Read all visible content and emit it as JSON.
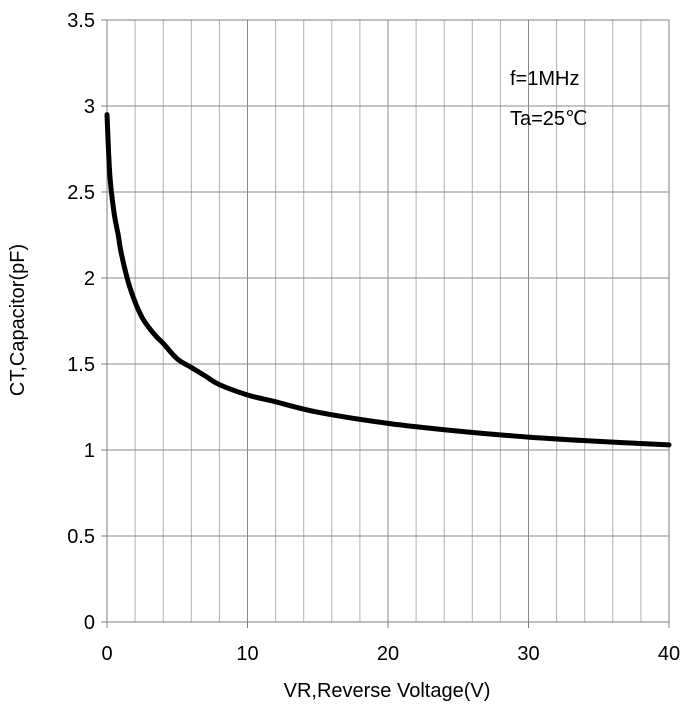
{
  "chart_data": {
    "type": "line",
    "title": "",
    "xlabel": "VR,Reverse Voltage(V)",
    "ylabel": "CT,Capacitor(pF)",
    "xlim": [
      0,
      40
    ],
    "ylim": [
      0,
      3.5
    ],
    "x_ticks": [
      "0",
      "10",
      "20",
      "30",
      "40"
    ],
    "y_ticks": [
      "0",
      "0.5",
      "1",
      "1.5",
      "2",
      "2.5",
      "3",
      "3.5"
    ],
    "grid": true,
    "annotations": [
      "f=1MHz",
      "Ta=25℃"
    ],
    "series": [
      {
        "x": [
          0,
          0.2,
          0.5,
          0.8,
          1.0,
          1.5,
          2.0,
          2.5,
          3.0,
          3.5,
          4.0,
          5.0,
          6.0,
          7.0,
          8.0,
          10.0,
          12.0,
          15.0,
          20.0,
          25.0,
          30.0,
          35.0,
          40.0
        ],
        "y": [
          2.95,
          2.6,
          2.38,
          2.25,
          2.15,
          1.98,
          1.86,
          1.77,
          1.71,
          1.66,
          1.62,
          1.53,
          1.48,
          1.43,
          1.38,
          1.32,
          1.28,
          1.22,
          1.155,
          1.11,
          1.075,
          1.05,
          1.03
        ]
      }
    ]
  }
}
